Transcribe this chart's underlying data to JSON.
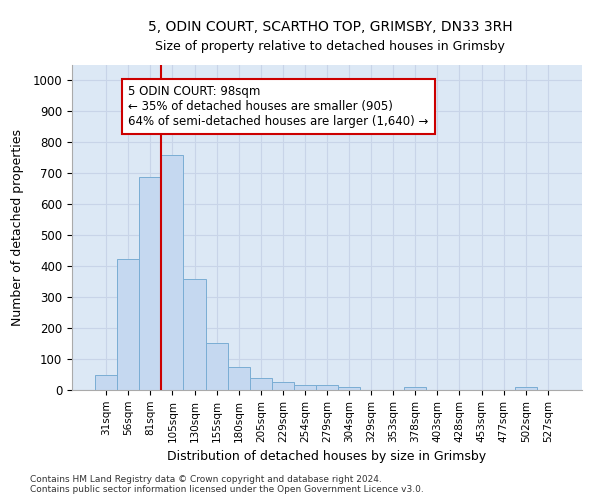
{
  "title1": "5, ODIN COURT, SCARTHO TOP, GRIMSBY, DN33 3RH",
  "title2": "Size of property relative to detached houses in Grimsby",
  "xlabel": "Distribution of detached houses by size in Grimsby",
  "ylabel": "Number of detached properties",
  "bar_labels": [
    "31sqm",
    "56sqm",
    "81sqm",
    "105sqm",
    "130sqm",
    "155sqm",
    "180sqm",
    "205sqm",
    "229sqm",
    "254sqm",
    "279sqm",
    "304sqm",
    "329sqm",
    "353sqm",
    "378sqm",
    "403sqm",
    "428sqm",
    "453sqm",
    "477sqm",
    "502sqm",
    "527sqm"
  ],
  "bar_values": [
    50,
    422,
    687,
    760,
    360,
    153,
    75,
    40,
    27,
    17,
    17,
    10,
    0,
    0,
    10,
    0,
    0,
    0,
    0,
    10,
    0
  ],
  "bar_color": "#c5d8f0",
  "bar_edge_color": "#7aadd4",
  "vline_color": "#cc0000",
  "annotation_text": "5 ODIN COURT: 98sqm\n← 35% of detached houses are smaller (905)\n64% of semi-detached houses are larger (1,640) →",
  "annotation_box_color": "#cc0000",
  "annotation_facecolor": "white",
  "ylim": [
    0,
    1050
  ],
  "yticks": [
    0,
    100,
    200,
    300,
    400,
    500,
    600,
    700,
    800,
    900,
    1000
  ],
  "grid_color": "#c8d4e8",
  "bg_color": "#dce8f5",
  "footer1": "Contains HM Land Registry data © Crown copyright and database right 2024.",
  "footer2": "Contains public sector information licensed under the Open Government Licence v3.0."
}
